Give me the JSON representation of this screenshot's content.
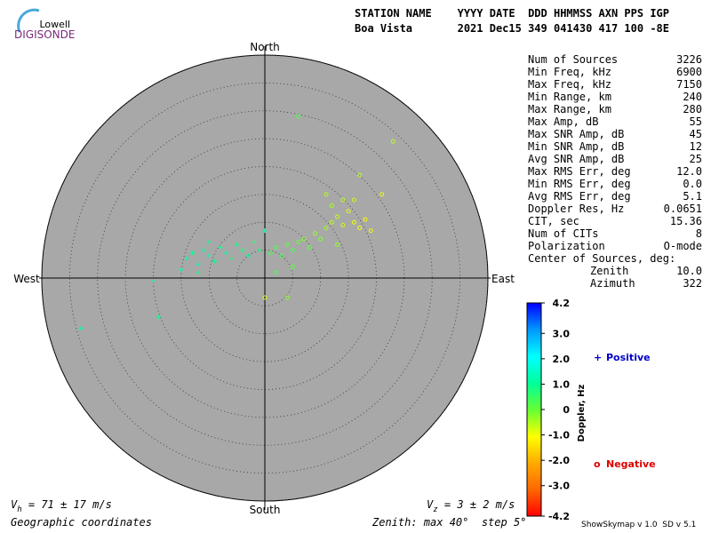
{
  "logo": {
    "line1": "Lowell",
    "line2": "DIGISONDE"
  },
  "header": {
    "labels": "STATION NAME    YYYY DATE  DDD HHMMSS AXN PPS IGP",
    "values": "Boa Vista       2021 Dec15 349 041430 417 100 -8E"
  },
  "stats": [
    [
      "Num of Sources",
      "3226"
    ],
    [
      "Min Freq, kHz",
      "6900"
    ],
    [
      "Max Freq, kHz",
      "7150"
    ],
    [
      "Min Range, km",
      "240"
    ],
    [
      "Max Range, km",
      "280"
    ],
    [
      "Max Amp, dB",
      "55"
    ],
    [
      "Max SNR Amp, dB",
      "45"
    ],
    [
      "Min SNR Amp, dB",
      "12"
    ],
    [
      "Avg SNR Amp, dB",
      "25"
    ],
    [
      "Max RMS Err, deg",
      "12.0"
    ],
    [
      "Min RMS Err, deg",
      "0.0"
    ],
    [
      "Avg RMS Err, deg",
      "5.1"
    ],
    [
      "Doppler Res, Hz",
      "0.0651"
    ],
    [
      "CIT, sec",
      "15.36"
    ],
    [
      "Num of CITs",
      "8"
    ],
    [
      "Polarization",
      "O-mode"
    ],
    [
      "Center of Sources, deg:",
      ""
    ]
  ],
  "center": [
    [
      "Zenith",
      "10.0"
    ],
    [
      "Azimuth",
      "322"
    ]
  ],
  "footer": {
    "left": "Geographic coordinates",
    "middle": "Zenith: max 40°  step 5°",
    "right": "ShowSkymap v 1.0  SD v 5.1"
  },
  "vh": {
    "symbol": "V",
    "subscript": "h",
    "text": " = 71 ± 17 m/s"
  },
  "vz": {
    "symbol": "V",
    "subscript": "z",
    "text": " = 3 ± 2 m/s"
  },
  "chart_data": {
    "type": "skymap",
    "directions": {
      "north": "North",
      "south": "South",
      "east": "East",
      "west": "West"
    },
    "rlim": [
      0,
      40
    ],
    "rings": [
      5,
      10,
      15,
      20,
      25,
      30,
      35,
      40
    ],
    "clim": [
      -4.2,
      4.2
    ],
    "cticks": [
      4.2,
      {
        "value": 3,
        "label": "3.0"
      },
      {
        "value": 2,
        "label": "2.0"
      },
      {
        "value": 1,
        "label": "1.0"
      },
      0,
      {
        "value": -1,
        "label": "-1.0"
      },
      {
        "value": -2,
        "label": "-2.0"
      },
      {
        "value": -3,
        "label": "-3.0"
      },
      -4.2
    ],
    "colormap": [
      "#ff0000",
      "#ff6600",
      "#ffaa00",
      "#ffff00",
      "#66ff33",
      "#00ff99",
      "#00ffff",
      "#0099ff",
      "#0000ff"
    ],
    "clabel": "Doppler, Hz",
    "series": [
      {
        "name": "Positive",
        "marker": "+",
        "color": "#0000cc",
        "x": [
          -14,
          -13,
          -12,
          -11,
          -10,
          -9,
          -8,
          -7,
          -6,
          -5,
          -4,
          -3,
          -2,
          -1,
          0,
          -20,
          -19,
          -33,
          -15,
          -10,
          -12
        ],
        "y": [
          3.5,
          4.5,
          2.5,
          5,
          4,
          3,
          5.5,
          4.5,
          3.5,
          6,
          5,
          4,
          6.5,
          5,
          8.5,
          -0.5,
          -7,
          -9,
          1.5,
          6.5,
          1
        ],
        "doppler": [
          1.2,
          1.0,
          1.4,
          1.1,
          1.3,
          1.0,
          0.9,
          1.2,
          0.8,
          0.9,
          0.7,
          1.0,
          0.6,
          0.8,
          1.1,
          1.2,
          1.0,
          1.3,
          1.2,
          1.0,
          0.9
        ]
      },
      {
        "name": "Negative",
        "marker": "o",
        "color": "#dd0000",
        "x": [
          1,
          2,
          3,
          4,
          5,
          6,
          7,
          8,
          9,
          10,
          11,
          12,
          13,
          14,
          12,
          15,
          16,
          17,
          14,
          18,
          16,
          11,
          19,
          17,
          6,
          23,
          21,
          4,
          0,
          5,
          2,
          13
        ],
        "y": [
          4.5,
          5.5,
          4,
          6,
          5,
          6.5,
          7,
          5.5,
          8,
          7,
          9,
          10,
          11,
          9.5,
          13,
          12,
          10,
          9,
          14,
          10.5,
          14,
          15,
          8.5,
          18.5,
          29,
          24.5,
          15,
          -3.5,
          -3.5,
          2,
          1,
          6
        ],
        "doppler": [
          0.3,
          0.2,
          0.4,
          0.1,
          0.3,
          0,
          -0.2,
          0.1,
          -0.3,
          -0.2,
          -0.4,
          -0.5,
          -0.6,
          -0.7,
          -0.4,
          -0.8,
          -0.9,
          -1.0,
          -0.6,
          -1.1,
          -0.7,
          -0.5,
          -1.2,
          -0.6,
          0.2,
          -0.6,
          -0.9,
          -0.2,
          -0.8,
          0.1,
          0.3,
          -0.3
        ]
      }
    ]
  }
}
